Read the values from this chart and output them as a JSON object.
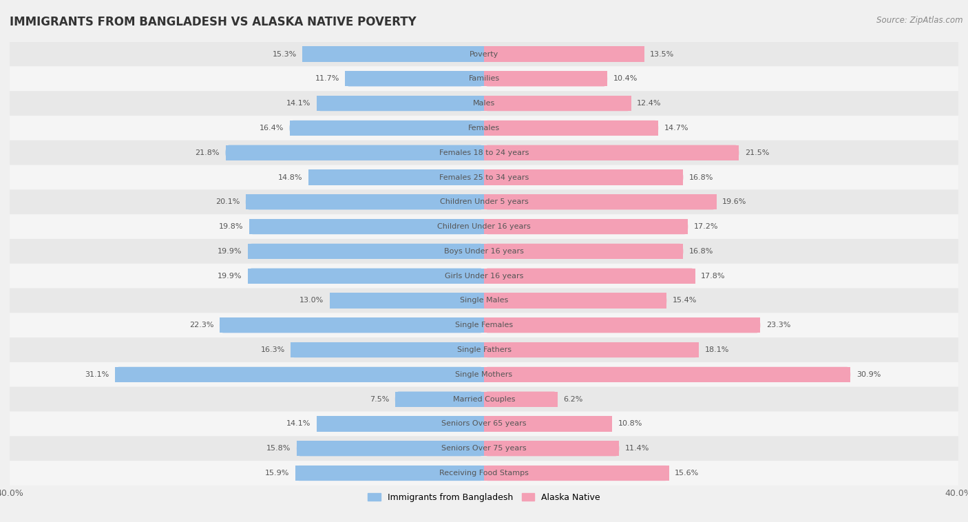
{
  "title": "IMMIGRANTS FROM BANGLADESH VS ALASKA NATIVE POVERTY",
  "source": "Source: ZipAtlas.com",
  "categories": [
    "Poverty",
    "Families",
    "Males",
    "Females",
    "Females 18 to 24 years",
    "Females 25 to 34 years",
    "Children Under 5 years",
    "Children Under 16 years",
    "Boys Under 16 years",
    "Girls Under 16 years",
    "Single Males",
    "Single Females",
    "Single Fathers",
    "Single Mothers",
    "Married Couples",
    "Seniors Over 65 years",
    "Seniors Over 75 years",
    "Receiving Food Stamps"
  ],
  "left_values": [
    15.3,
    11.7,
    14.1,
    16.4,
    21.8,
    14.8,
    20.1,
    19.8,
    19.9,
    19.9,
    13.0,
    22.3,
    16.3,
    31.1,
    7.5,
    14.1,
    15.8,
    15.9
  ],
  "right_values": [
    13.5,
    10.4,
    12.4,
    14.7,
    21.5,
    16.8,
    19.6,
    17.2,
    16.8,
    17.8,
    15.4,
    23.3,
    18.1,
    30.9,
    6.2,
    10.8,
    11.4,
    15.6
  ],
  "left_color": "#92bfe8",
  "right_color": "#f4a0b5",
  "left_label": "Immigrants from Bangladesh",
  "right_label": "Alaska Native",
  "xlim": 40.0,
  "background_color": "#f0f0f0",
  "row_colors": [
    "#e8e8e8",
    "#f5f5f5"
  ],
  "title_fontsize": 12,
  "source_fontsize": 8.5,
  "category_fontsize": 8,
  "value_fontsize": 8,
  "legend_fontsize": 9,
  "axis_tick_fontsize": 9
}
